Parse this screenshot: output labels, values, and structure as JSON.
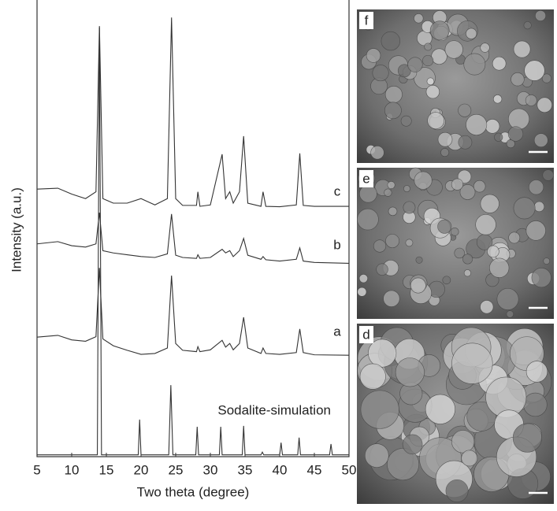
{
  "chart_data": {
    "type": "line",
    "xlabel": "Two theta (degree)",
    "ylabel": "Intensity (a.u.)",
    "xlim": [
      5,
      50
    ],
    "ylim": [
      0,
      100
    ],
    "xticks": [
      5,
      10,
      15,
      20,
      25,
      30,
      35,
      40,
      45,
      50
    ],
    "series": [
      {
        "name": "Sodalite-simulation",
        "color": "#333333",
        "x": [
          5,
          13.7,
          14.0,
          14.3,
          19.6,
          19.8,
          20.0,
          24.0,
          24.3,
          24.6,
          27.9,
          28.1,
          28.3,
          31.3,
          31.5,
          31.7,
          34.6,
          34.8,
          35.0,
          37.3,
          37.5,
          37.7,
          40.0,
          40.2,
          40.4,
          42.6,
          42.8,
          43.0,
          47.2,
          47.4,
          47.6,
          50
        ],
        "values": [
          0.4,
          0.4,
          94.8,
          0.4,
          0.4,
          8.2,
          0.4,
          0.4,
          15.8,
          0.4,
          0.4,
          6.6,
          0.4,
          0.4,
          6.6,
          0.4,
          0.4,
          6.8,
          0.4,
          0.4,
          1.0,
          0.4,
          0.4,
          3.1,
          0.4,
          0.4,
          4.2,
          0.4,
          0.4,
          2.8,
          0.4,
          0.4
        ]
      },
      {
        "name": "a",
        "color": "#333333",
        "x": [
          5,
          8,
          10,
          12,
          13.5,
          14.0,
          14.5,
          16,
          18,
          20,
          22,
          23.8,
          24.4,
          25,
          26,
          28.0,
          28.2,
          28.5,
          30,
          31.7,
          32.2,
          32.8,
          33.3,
          34.2,
          34.8,
          35.4,
          37.3,
          37.6,
          38,
          40,
          42.4,
          42.9,
          43.4,
          45,
          50
        ],
        "values": [
          26.4,
          26.8,
          25.8,
          25.5,
          26.5,
          41.7,
          26,
          24.5,
          23.5,
          22.6,
          22.8,
          24,
          40,
          25,
          23.5,
          23.2,
          24.3,
          23.2,
          23.6,
          25.7,
          24.2,
          25,
          23.6,
          25,
          30.8,
          24,
          22.8,
          24,
          22.8,
          22.6,
          23,
          28.2,
          23,
          22.5,
          22.4
        ]
      },
      {
        "name": "b",
        "color": "#333333",
        "x": [
          5,
          8,
          10,
          12,
          13.5,
          14.0,
          14.5,
          16,
          18,
          20,
          22,
          23.8,
          24.4,
          25,
          26,
          28.0,
          28.2,
          28.5,
          30,
          31.7,
          32.2,
          32.8,
          33.3,
          34.2,
          34.8,
          35.4,
          37.3,
          37.6,
          38,
          40,
          42.4,
          42.9,
          43.4,
          45,
          50
        ],
        "values": [
          47,
          47.5,
          46.6,
          46.3,
          47,
          53.9,
          45.5,
          45,
          44.6,
          44.2,
          44,
          44.8,
          53.6,
          44.5,
          44,
          43.8,
          44.6,
          43.8,
          44,
          45.8,
          45,
          45.5,
          44.2,
          45.5,
          48.2,
          44.5,
          43.6,
          44.2,
          43.5,
          43.2,
          43.6,
          46.1,
          43.2,
          42.9,
          42.7
        ]
      },
      {
        "name": "c",
        "color": "#333333",
        "x": [
          5,
          8,
          10,
          12,
          13.5,
          14.0,
          14.5,
          16,
          18,
          20,
          22,
          23.8,
          24.4,
          25,
          26,
          28.0,
          28.2,
          28.5,
          30,
          31.7,
          32.2,
          32.8,
          33.3,
          34.2,
          34.8,
          35.4,
          37.3,
          37.6,
          38,
          40,
          42.4,
          42.9,
          43.4,
          45,
          50
        ],
        "values": [
          59.1,
          59.3,
          58,
          57,
          58.5,
          95.1,
          57,
          56,
          56,
          57,
          55.6,
          57,
          97,
          57,
          55.5,
          55.5,
          58.5,
          55.3,
          55.6,
          66.8,
          57,
          58.5,
          56,
          58.5,
          70.8,
          56,
          55.3,
          58.5,
          55.3,
          55.2,
          55.6,
          67,
          55.5,
          55.3,
          55.3
        ]
      }
    ]
  },
  "panels": [
    "f",
    "e",
    "d"
  ]
}
